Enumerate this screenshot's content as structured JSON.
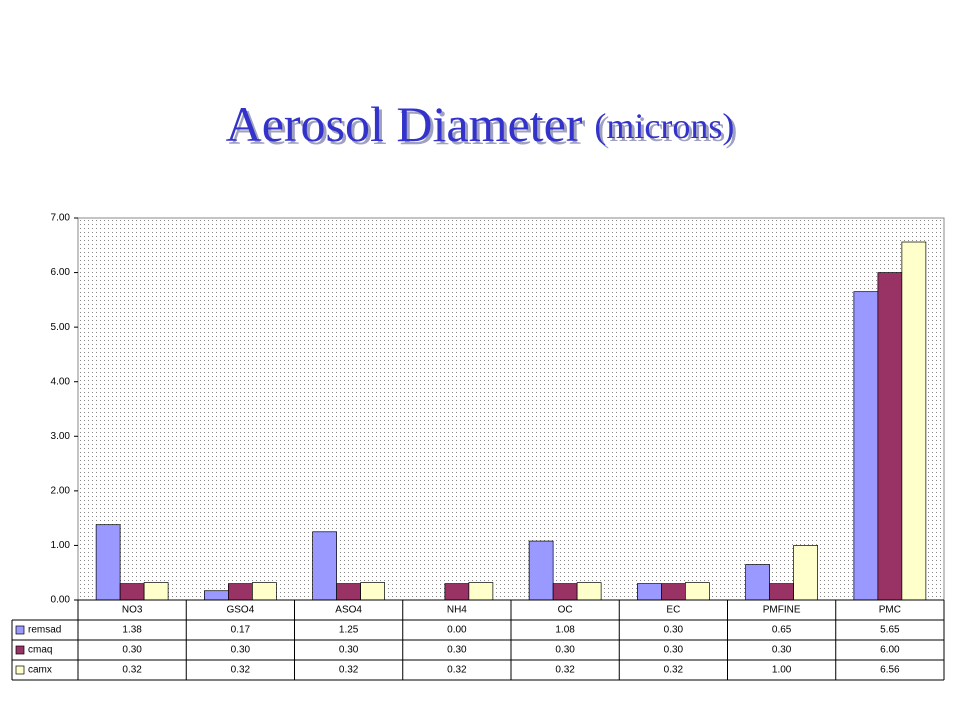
{
  "chart_data": {
    "type": "bar",
    "title": "Aerosol Diameter",
    "units": "(microns)",
    "categories": [
      "NO3",
      "GSO4",
      "ASO4",
      "NH4",
      "OC",
      "EC",
      "PMFINE",
      "PMC"
    ],
    "series": [
      {
        "name": "remsad",
        "color": "#9999ff",
        "values": [
          1.38,
          0.17,
          1.25,
          0,
          1.08,
          0.3,
          0.65,
          5.65
        ],
        "value_labels": [
          "1.38",
          "0.17",
          "1.25",
          "0.00",
          "1.08",
          "0.30",
          "0.65",
          "5.65"
        ]
      },
      {
        "name": "cmaq",
        "color": "#993366",
        "values": [
          0.3,
          0.3,
          0.3,
          0.3,
          0.3,
          0.3,
          0.3,
          6
        ],
        "value_labels": [
          "0.30",
          "0.30",
          "0.30",
          "0.30",
          "0.30",
          "0.30",
          "0.30",
          "6.00"
        ]
      },
      {
        "name": "camx",
        "color": "#ffffcc",
        "values": [
          0.32,
          0.32,
          0.32,
          0.32,
          0.32,
          0.32,
          1,
          6.56
        ],
        "value_labels": [
          "0.32",
          "0.32",
          "0.32",
          "0.32",
          "0.32",
          "0.32",
          "1.00",
          "6.56"
        ]
      }
    ],
    "ylim": [
      0,
      7
    ],
    "yticks": [
      {
        "value": 0,
        "label": "0.00"
      },
      {
        "value": 1,
        "label": "1.00"
      },
      {
        "value": 2,
        "label": "2.00"
      },
      {
        "value": 3,
        "label": "3.00"
      },
      {
        "value": 4,
        "label": "4.00"
      },
      {
        "value": 5,
        "label": "5.00"
      },
      {
        "value": 6,
        "label": "6.00"
      },
      {
        "value": 7,
        "label": "7.00"
      }
    ]
  }
}
